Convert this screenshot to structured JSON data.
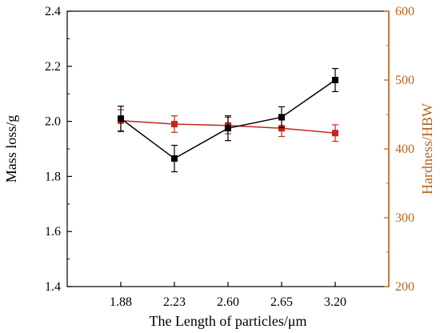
{
  "chart_data": {
    "type": "line",
    "xlabel": "The Length of particles/μm",
    "ylabel_left": "Mass loss/g",
    "ylabel_right": "Hardness/HBW",
    "categories": [
      "1.88",
      "2.23",
      "2.60",
      "2.65",
      "3.20"
    ],
    "ylim_left": [
      1.4,
      2.4
    ],
    "yticks_left": [
      "1.4",
      "1.6",
      "1.8",
      "2.0",
      "2.2",
      "2.4"
    ],
    "ylim_right": [
      200,
      600
    ],
    "yticks_right": [
      "200",
      "300",
      "400",
      "500",
      "600"
    ],
    "grid": false,
    "series": [
      {
        "axis": "left",
        "color": "#000000",
        "values": [
          2.01,
          1.865,
          1.975,
          2.015,
          2.15
        ],
        "errors": [
          0.045,
          0.048,
          0.045,
          0.038,
          0.042
        ]
      },
      {
        "axis": "right",
        "color": "#c0281f",
        "values": [
          441,
          436,
          434,
          430,
          423
        ],
        "errors": [
          16,
          12,
          12,
          12,
          12
        ]
      }
    ],
    "colors": {
      "left_axis": "#000000",
      "right_axis": "#b5651d",
      "hardness": "#c0281f"
    }
  }
}
